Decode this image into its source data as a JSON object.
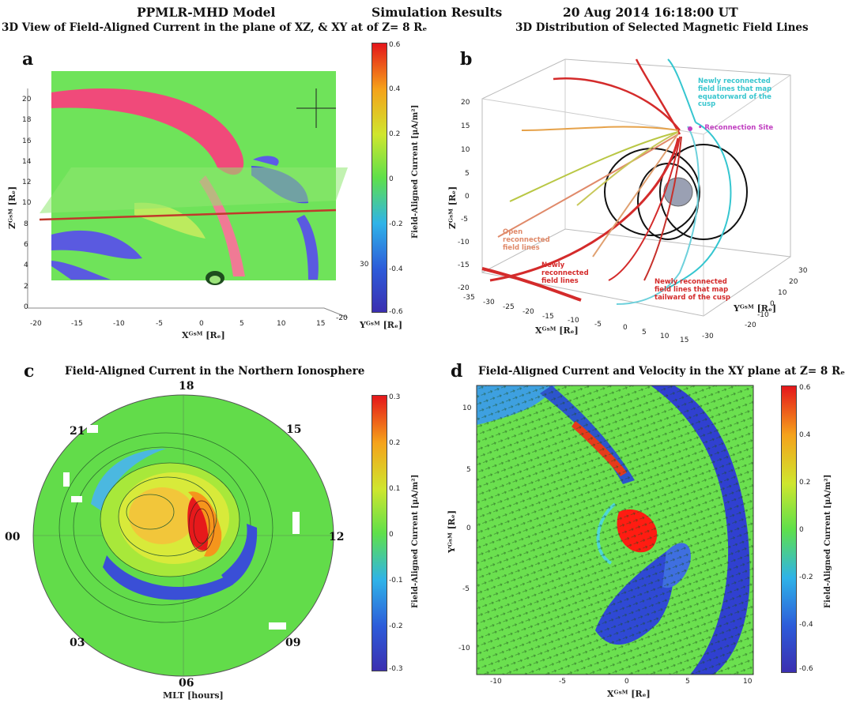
{
  "header": {
    "model": "PPMLR-MHD Model",
    "center": "Simulation Results",
    "datetime": "20 Aug 2014  16:18:00 UT"
  },
  "panel_a": {
    "label": "a",
    "title": "3D View of Field-Aligned Current in the plane of XZ, & XY at of Z= 8 Rₑ",
    "z_ticks": [
      "20",
      "18",
      "16",
      "14",
      "12",
      "10",
      "8",
      "6",
      "4",
      "2",
      "0"
    ],
    "x_ticks": [
      "-20",
      "-15",
      "-10",
      "-5",
      "0",
      "5",
      "10",
      "15"
    ],
    "y_ticks": [
      "-20",
      "30"
    ],
    "z_label": "Zᴳˢᴹ [Rₑ]",
    "x_label": "Xᴳˢᴹ [Rₑ]",
    "y_label": "Yᴳˢᴹ [Rₑ]",
    "colorbar": {
      "label": "Field-Aligned Current [μA/m²]",
      "ticks": [
        "0.6",
        "0.4",
        "0.2",
        "0",
        "-0.2",
        "-0.4",
        "-0.6"
      ]
    }
  },
  "panel_b": {
    "label": "b",
    "title": "3D Distribution of Selected Magnetic Field Lines",
    "z_ticks": [
      "20",
      "15",
      "10",
      "5",
      "0",
      "-5",
      "-10",
      "-15",
      "-20"
    ],
    "x_ticks": [
      "-35",
      "-30",
      "-25",
      "-20",
      "-15",
      "-10",
      "-5",
      "0",
      "5",
      "10",
      "15"
    ],
    "y_ticks": [
      "30",
      "20",
      "10",
      "0",
      "-10",
      "-20",
      "-30"
    ],
    "z_label": "Zᴳˢᴹ [Rₑ]",
    "x_label": "Xᴳˢᴹ [Rₑ]",
    "y_label": "Yᴳˢᴹ [Rₑ]",
    "annotations": {
      "reconnection_site": "• Reconnection Site",
      "newly_left": "Newly\nreconnected\nfield lines",
      "newly_right": "Newly reconnected\nfield lines that map\ntailward of the cusp",
      "cusp_lines": "Newly reconnected\nfield lines that map\nequatorward of the\ncusp",
      "open_lines": "Open\nreconnected\nfield lines"
    }
  },
  "panel_c": {
    "label": "c",
    "title": "Field-Aligned Current in the Northern Ionosphere",
    "mlt": [
      "18",
      "15",
      "12",
      "09",
      "06",
      "03",
      "00",
      "21"
    ],
    "mlt_label": "MLT [hours]",
    "colorbar": {
      "label": "Field-Aligned Current [μA/m²]",
      "ticks": [
        "0.3",
        "0.2",
        "0.1",
        "0",
        "-0.1",
        "-0.2",
        "-0.3"
      ]
    }
  },
  "panel_d": {
    "label": "d",
    "title": "Field-Aligned Current and Velocity in the XY plane at Z= 8 Rₑ",
    "y_ticks": [
      "10",
      "5",
      "0",
      "-5",
      "-10"
    ],
    "x_ticks": [
      "-10",
      "-5",
      "0",
      "5",
      "10"
    ],
    "y_label": "Yᴳˢᴹ [Rₑ]",
    "x_label": "Xᴳˢᴹ [Rₑ]",
    "colorbar": {
      "label": "Field-Aligned Current [μA/m²]",
      "ticks": [
        "0.6",
        "0.4",
        "0.2",
        "0",
        "-0.2",
        "-0.4",
        "-0.6"
      ]
    }
  },
  "chart_data": [
    {
      "type": "heatmap",
      "panel": "a",
      "colorscale": "jet",
      "cmin": -0.6,
      "cmax": 0.6
    },
    {
      "type": "line",
      "panel": "b",
      "note": "3D field lines"
    },
    {
      "type": "heatmap",
      "panel": "c",
      "colorscale": "jet",
      "cmin": -0.3,
      "cmax": 0.3
    },
    {
      "type": "heatmap",
      "panel": "d",
      "colorscale": "jet",
      "cmin": -0.6,
      "cmax": 0.6
    }
  ]
}
